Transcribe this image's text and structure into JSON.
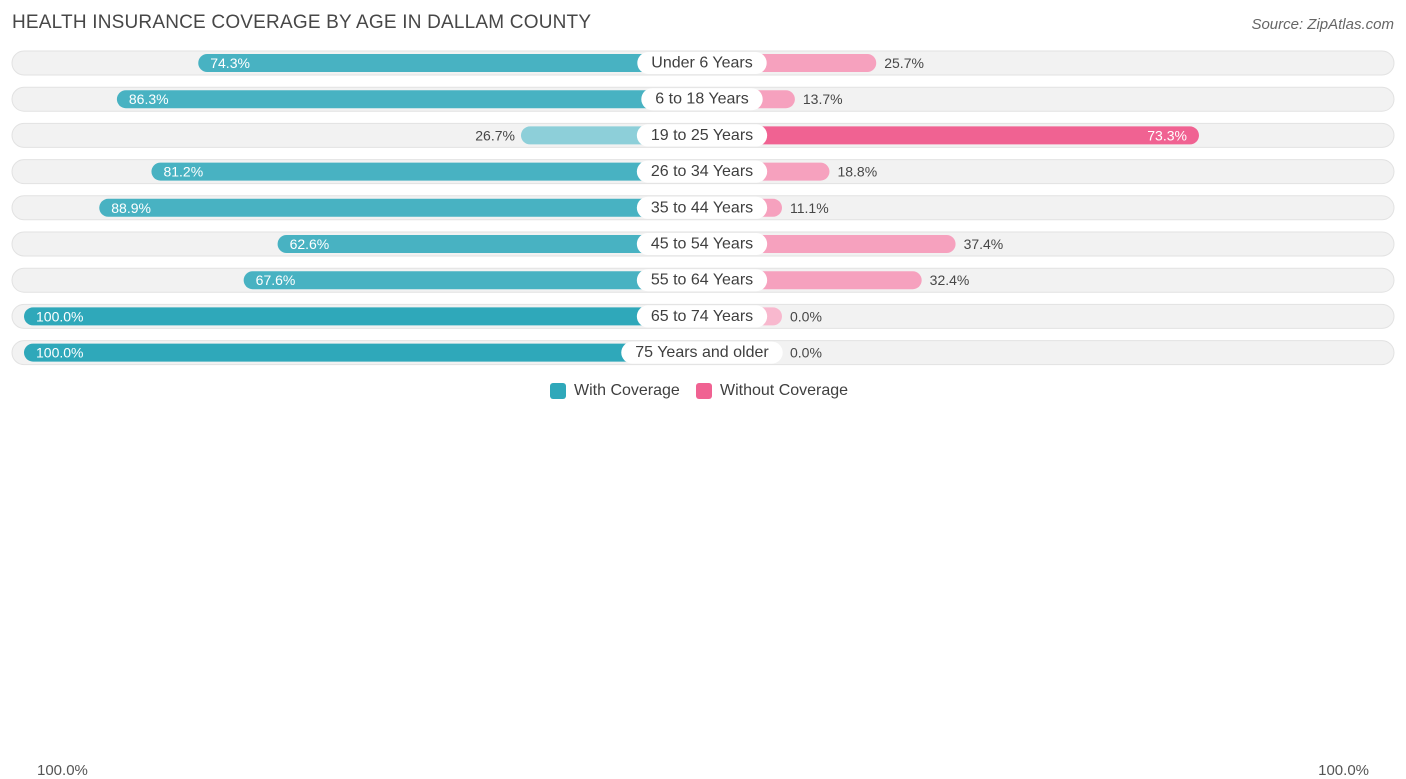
{
  "header": {
    "title": "HEALTH INSURANCE COVERAGE BY AGE IN DALLAM COUNTY",
    "source": "Source: ZipAtlas.com"
  },
  "legend": {
    "with_label": "With Coverage",
    "without_label": "Without Coverage",
    "with_color": "#2fa8ba",
    "without_color": "#f06292"
  },
  "axis": {
    "left_label": "100.0%",
    "right_label": "100.0%"
  },
  "chart_data": {
    "type": "bar",
    "title": "HEALTH INSURANCE COVERAGE BY AGE IN DALLAM COUNTY",
    "orientation": "horizontal-diverging",
    "categories": [
      "Under 6 Years",
      "6 to 18 Years",
      "19 to 25 Years",
      "26 to 34 Years",
      "35 to 44 Years",
      "45 to 54 Years",
      "55 to 64 Years",
      "65 to 74 Years",
      "75 Years and older"
    ],
    "series": [
      {
        "name": "With Coverage",
        "values": [
          74.3,
          86.3,
          26.7,
          81.2,
          88.9,
          62.6,
          67.6,
          100.0,
          100.0
        ],
        "labels": [
          "74.3%",
          "86.3%",
          "26.7%",
          "81.2%",
          "88.9%",
          "62.6%",
          "67.6%",
          "100.0%",
          "100.0%"
        ]
      },
      {
        "name": "Without Coverage",
        "values": [
          25.7,
          13.7,
          73.3,
          18.8,
          11.1,
          37.4,
          32.4,
          0.0,
          0.0
        ],
        "labels": [
          "25.7%",
          "13.7%",
          "73.3%",
          "18.8%",
          "11.1%",
          "37.4%",
          "32.4%",
          "0.0%",
          "0.0%"
        ]
      }
    ],
    "xlim": [
      -100,
      100
    ],
    "legend_position": "bottom-center"
  }
}
